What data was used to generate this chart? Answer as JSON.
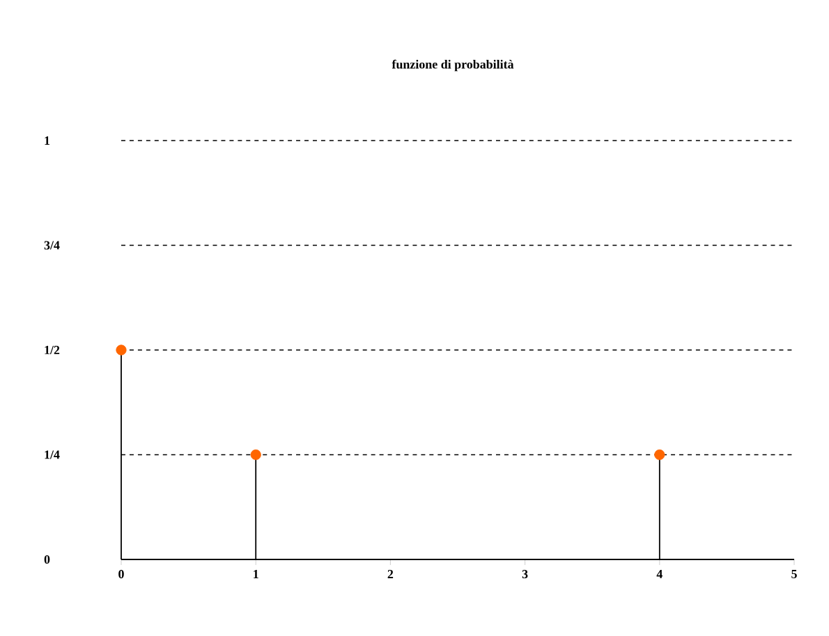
{
  "chart_data": {
    "type": "lollipop",
    "title": "funzione di probabilità",
    "x": [
      0,
      1,
      4
    ],
    "values": [
      0.5,
      0.25,
      0.25
    ],
    "color": "#ff6600",
    "grid": "y",
    "xlim": [
      0,
      5
    ],
    "xticks": [
      0,
      1,
      2,
      3,
      4,
      5
    ],
    "ylim": [
      0,
      1
    ],
    "yticks": [
      0,
      {
        "value": 0.25,
        "label": "1/4"
      },
      {
        "value": 0.5,
        "label": "1/2"
      },
      {
        "value": 0.75,
        "label": "3/4"
      },
      1
    ]
  }
}
